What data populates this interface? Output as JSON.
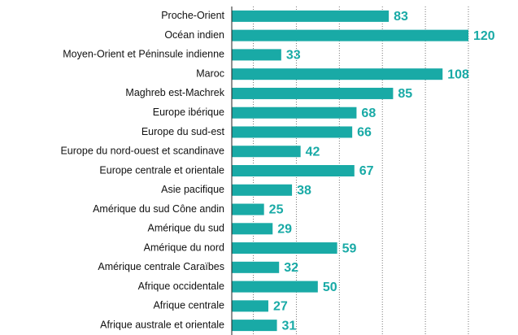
{
  "chart_data": {
    "type": "bar",
    "orientation": "horizontal",
    "categories": [
      "Proche-Orient",
      "Océan indien",
      "Moyen-Orient et Péninsule indienne",
      "Maroc",
      "Maghreb est-Machrek",
      "Europe ibérique",
      "Europe du sud-est",
      "Europe du nord-ouest et scandinave",
      "Europe centrale et orientale",
      "Asie pacifique",
      "Amérique du sud Cône andin",
      "Amérique du sud",
      "Amérique du nord",
      "Amérique centrale Caraïbes",
      "Afrique occidentale",
      "Afrique centrale",
      "Afrique australe et orientale"
    ],
    "values": [
      83,
      120,
      33,
      108,
      85,
      68,
      66,
      42,
      67,
      38,
      25,
      29,
      59,
      32,
      50,
      27,
      31
    ],
    "color": "#19aaa6",
    "xlim": [
      10,
      120
    ],
    "xticks": [
      20,
      40,
      60,
      80,
      100,
      120
    ],
    "grid": true
  }
}
